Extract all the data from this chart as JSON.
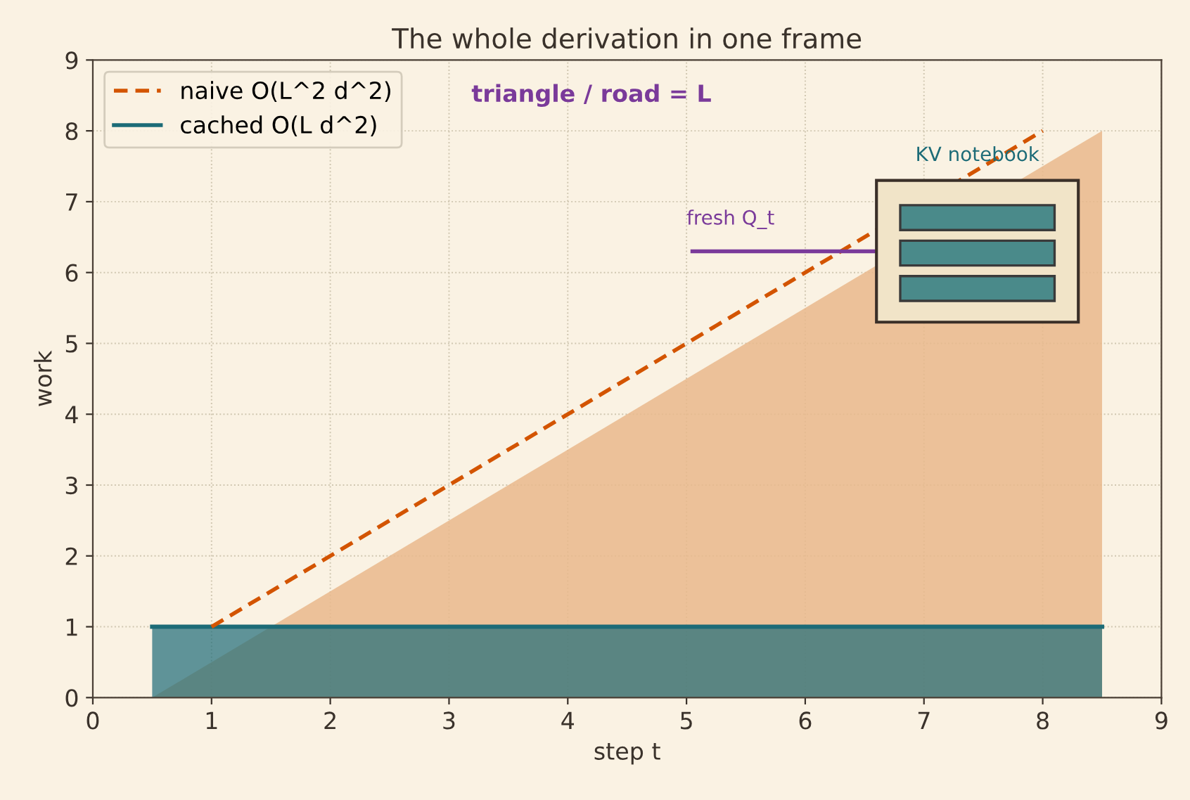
{
  "chart_data": {
    "type": "line",
    "title": "The whole derivation in one frame",
    "xlabel": "step t",
    "ylabel": "work",
    "xlim": [
      0,
      9
    ],
    "ylim": [
      0,
      9
    ],
    "xticks": [
      0,
      1,
      2,
      3,
      4,
      5,
      6,
      7,
      8,
      9
    ],
    "yticks": [
      0,
      1,
      2,
      3,
      4,
      5,
      6,
      7,
      8,
      9
    ],
    "grid": true,
    "legend": "top left",
    "series": [
      {
        "type": "area",
        "color": "#e9b88c",
        "x": [
          0.5,
          8.5
        ],
        "values": [
          0,
          8
        ]
      },
      {
        "type": "area",
        "name": "cached O(L d^2)",
        "color": "#1c6b77",
        "x": [
          0.5,
          8.5
        ],
        "values": [
          1,
          1
        ]
      },
      {
        "name": "naive O(L^2 d^2)",
        "color": "#d35400",
        "line_style": "dashed",
        "x": [
          1,
          8
        ],
        "values": [
          1,
          8
        ]
      }
    ],
    "annotations": [
      "triangle / road = L",
      "fresh Q_t",
      "KV notebook"
    ]
  }
}
